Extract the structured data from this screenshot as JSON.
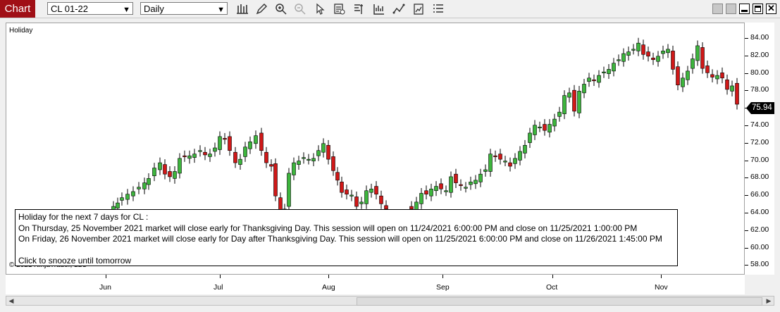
{
  "titlebar": {
    "chart_label": "Chart",
    "instrument": "CL 01-22",
    "period": "Daily",
    "accent_color": "#a00f16"
  },
  "toolbar_icons": [
    "bar-type-icon",
    "drawing-tool-icon",
    "zoom-in-icon",
    "zoom-out-icon",
    "pointer-icon",
    "data-box-icon",
    "properties-icon",
    "indicators-icon",
    "strategies-icon",
    "chart-style-icon",
    "list-icon"
  ],
  "chart": {
    "panel_title": "Holiday",
    "last_price": "75.94",
    "price_axis": [
      "84.00",
      "82.00",
      "80.00",
      "78.00",
      "76.00",
      "74.00",
      "72.00",
      "70.00",
      "68.00",
      "66.00",
      "64.00",
      "62.00",
      "60.00",
      "58.00"
    ],
    "time_axis": [
      "Jun",
      "Jul",
      "Aug",
      "Sep",
      "Oct",
      "Nov"
    ],
    "copyright": "© 2021 NinjaTrader, LLC",
    "up_color": "#3db53d",
    "down_color": "#d01818"
  },
  "alert": {
    "line1": "Holiday for the next 7 days for CL :",
    "line2": "On Thursday, 25 November 2021 market will close early for Thanksgiving Day.  This session will open on 11/24/2021 6:00:00 PM and close on 11/25/2021 1:00:00 PM",
    "line3": "On Friday, 26 November 2021 market will close early for Day after Thanksgiving Day.  This session will open on 11/25/2021 6:00:00 PM and close on 11/26/2021 1:45:00 PM",
    "line4": "Click to snooze until tomorrow"
  }
}
